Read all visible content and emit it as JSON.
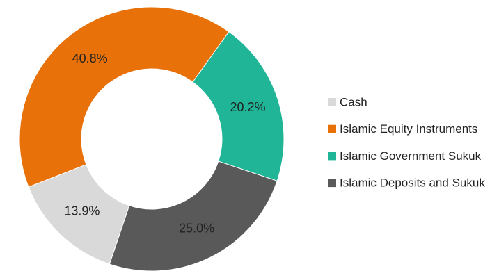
{
  "chart_data": {
    "type": "pie",
    "categories": [
      "Cash",
      "Islamic Equity Instruments",
      "Islamic Government Sukuk",
      "Islamic Deposits and Sukuk"
    ],
    "values": [
      13.9,
      40.8,
      20.2,
      25.0
    ],
    "value_labels": [
      "13.9%",
      "40.8%",
      "20.2%",
      "25.0%"
    ],
    "colors": [
      "#d9d9d9",
      "#e8710a",
      "#20b597",
      "#595959"
    ],
    "legend": "right"
  }
}
